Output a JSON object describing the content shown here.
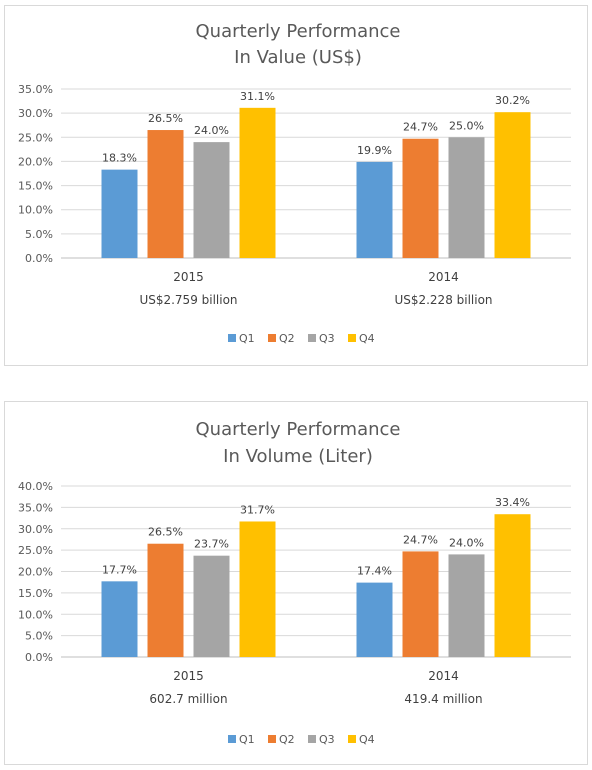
{
  "chart_data": [
    {
      "type": "bar",
      "title": "Quarterly Performance",
      "subtitle": "In Value (US$)",
      "categories": [
        "2015",
        "2014"
      ],
      "category_sublabels": [
        "US$2.759 billion",
        "US$2.228 billion"
      ],
      "series": [
        {
          "name": "Q1",
          "values": [
            18.3,
            19.9
          ],
          "labels": [
            "18.3%",
            "19.9%"
          ],
          "color": "#5B9BD5"
        },
        {
          "name": "Q2",
          "values": [
            26.5,
            24.7
          ],
          "labels": [
            "26.5%",
            "24.7%"
          ],
          "color": "#ED7D31"
        },
        {
          "name": "Q3",
          "values": [
            24.0,
            25.0
          ],
          "labels": [
            "24.0%",
            "25.0%"
          ],
          "color": "#A5A5A5"
        },
        {
          "name": "Q4",
          "values": [
            31.1,
            30.2
          ],
          "labels": [
            "31.1%",
            "30.2%"
          ],
          "color": "#FFC000"
        }
      ],
      "ylim": [
        0,
        35
      ],
      "yticks": [
        0,
        5,
        10,
        15,
        20,
        25,
        30,
        35
      ],
      "ytick_labels": [
        "0.0%",
        "5.0%",
        "10.0%",
        "15.0%",
        "20.0%",
        "25.0%",
        "30.0%",
        "35.0%"
      ],
      "grid": true,
      "legend": "bottom",
      "xlabel": "",
      "ylabel": ""
    },
    {
      "type": "bar",
      "title": "Quarterly Performance",
      "subtitle": "In Volume (Liter)",
      "categories": [
        "2015",
        "2014"
      ],
      "category_sublabels": [
        "602.7 million",
        "419.4 million"
      ],
      "series": [
        {
          "name": "Q1",
          "values": [
            17.7,
            17.4
          ],
          "labels": [
            "17.7%",
            "17.4%"
          ],
          "color": "#5B9BD5"
        },
        {
          "name": "Q2",
          "values": [
            26.5,
            24.7
          ],
          "labels": [
            "26.5%",
            "24.7%"
          ],
          "color": "#ED7D31"
        },
        {
          "name": "Q3",
          "values": [
            23.7,
            24.0
          ],
          "labels": [
            "23.7%",
            "24.0%"
          ],
          "color": "#A5A5A5"
        },
        {
          "name": "Q4",
          "values": [
            31.7,
            33.4
          ],
          "labels": [
            "31.7%",
            "33.4%"
          ],
          "color": "#FFC000"
        }
      ],
      "ylim": [
        0,
        40
      ],
      "yticks": [
        0,
        5,
        10,
        15,
        20,
        25,
        30,
        35,
        40
      ],
      "ytick_labels": [
        "0.0%",
        "5.0%",
        "10.0%",
        "15.0%",
        "20.0%",
        "25.0%",
        "30.0%",
        "35.0%",
        "40.0%"
      ],
      "grid": true,
      "legend": "bottom",
      "xlabel": "",
      "ylabel": ""
    }
  ]
}
